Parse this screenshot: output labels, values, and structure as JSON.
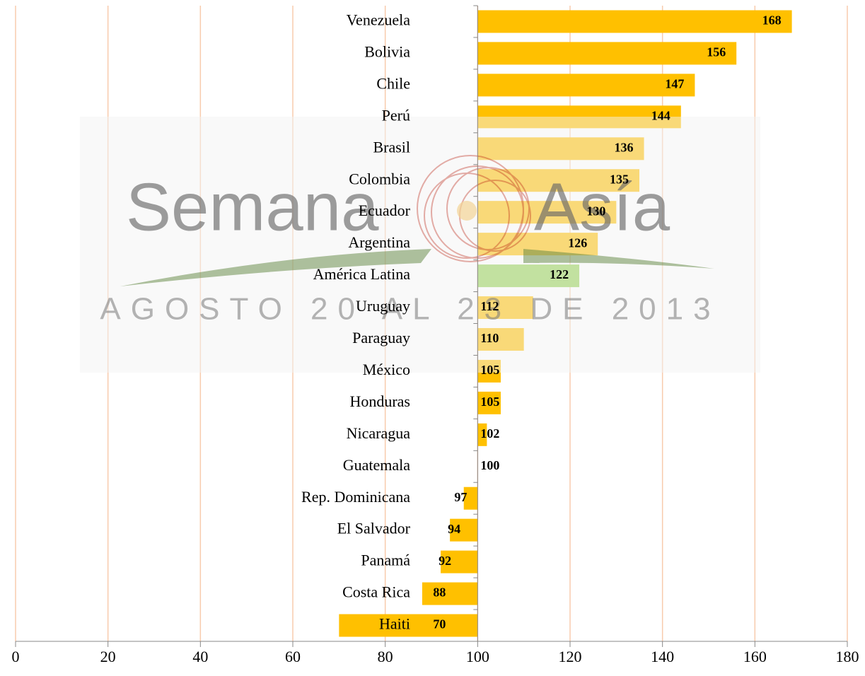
{
  "chart_data": {
    "type": "bar",
    "orientation": "horizontal",
    "categories": [
      "Venezuela",
      "Bolivia",
      "Chile",
      "Perú",
      "Brasil",
      "Colombia",
      "Ecuador",
      "Argentina",
      "América Latina",
      "Uruguay",
      "Paraguay",
      "México",
      "Honduras",
      "Nicaragua",
      "Guatemala",
      "Rep. Dominicana",
      "El Salvador",
      "Panamá",
      "Costa Rica",
      "Haiti"
    ],
    "values": [
      168,
      156,
      147,
      144,
      136,
      135,
      130,
      126,
      122,
      112,
      110,
      105,
      105,
      102,
      100,
      97,
      94,
      92,
      88,
      70
    ],
    "color": "#ffc000",
    "highlight": {
      "category": "América Latina",
      "color": "#92d050"
    },
    "xlim": [
      0,
      180
    ],
    "xticks": [
      0,
      20,
      40,
      60,
      80,
      100,
      120,
      140,
      160,
      180
    ],
    "axis_crossing": 100,
    "grid": true,
    "grid_color": "#f8cbad",
    "watermark": {
      "left": "Semana",
      "right": "Asía",
      "subtitle": "AGOSTO 20 AL 23 DE 2013"
    }
  }
}
